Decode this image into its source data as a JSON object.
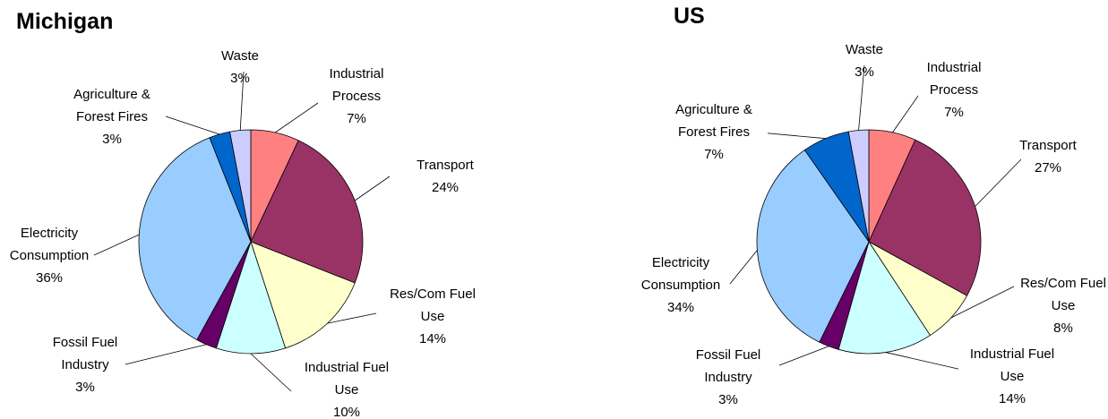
{
  "chart_data": [
    {
      "type": "pie",
      "title": "Michigan",
      "categories": [
        "Industrial Process",
        "Transport",
        "Res/Com Fuel Use",
        "Industrial Fuel Use",
        "Fossil Fuel Industry",
        "Electricity Consumption",
        "Agriculture & Forest Fires",
        "Waste"
      ],
      "values": [
        7,
        24,
        14,
        10,
        3,
        36,
        3,
        3
      ],
      "value_labels": [
        "7%",
        "24%",
        "14%",
        "10%",
        "3%",
        "36%",
        "3%",
        "3%"
      ],
      "colors": [
        "#ff8080",
        "#993366",
        "#ffffcc",
        "#ccffff",
        "#660066",
        "#99ccff",
        "#0066cc",
        "#ccccff"
      ]
    },
    {
      "type": "pie",
      "title": "US",
      "categories": [
        "Industrial Process",
        "Transport",
        "Res/Com Fuel Use",
        "Industrial Fuel Use",
        "Fossil Fuel Industry",
        "Electricity Consumption",
        "Agriculture & Forest Fires",
        "Waste"
      ],
      "values": [
        7,
        27,
        8,
        14,
        3,
        34,
        7,
        3
      ],
      "value_labels": [
        "7%",
        "27%",
        "8%",
        "14%",
        "3%",
        "34%",
        "7%",
        "3%"
      ],
      "colors": [
        "#ff8080",
        "#993366",
        "#ffffcc",
        "#ccffff",
        "#660066",
        "#99ccff",
        "#0066cc",
        "#ccccff"
      ]
    }
  ]
}
